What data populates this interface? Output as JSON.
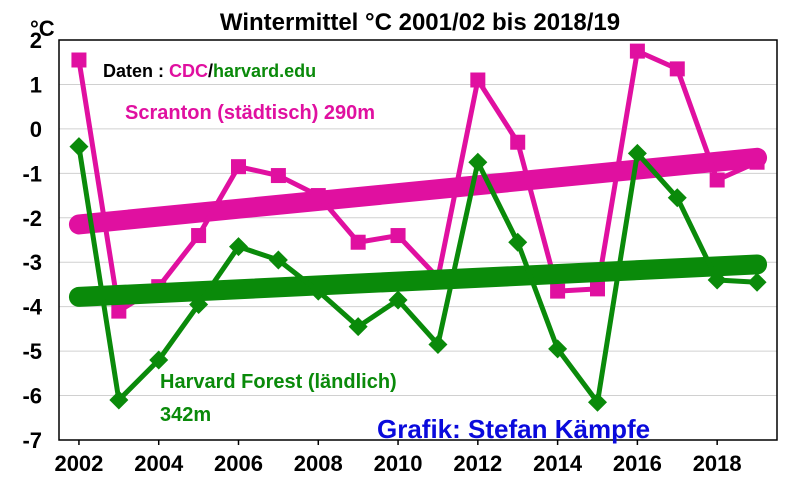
{
  "chart_data": {
    "type": "line",
    "title": "Wintermittel °C 2001/02 bis 2018/19",
    "yunit": "°C",
    "ylim": [
      -7,
      2
    ],
    "yticks": [
      "2",
      "1",
      "0",
      "-1",
      "-2",
      "-3",
      "-4",
      "-5",
      "-6",
      "-7"
    ],
    "xlim": [
      2001.5,
      2019.5
    ],
    "xticks": [
      "2002",
      "2004",
      "2006",
      "2008",
      "2010",
      "2012",
      "2014",
      "2016",
      "2018"
    ],
    "grid": true,
    "x": [
      2002,
      2003,
      2004,
      2005,
      2006,
      2007,
      2008,
      2009,
      2010,
      2011,
      2012,
      2013,
      2014,
      2015,
      2016,
      2017,
      2018,
      2019
    ],
    "series": [
      {
        "name": "Scranton (städtisch) 290m",
        "color": "#e010a0",
        "marker": "square",
        "values": [
          1.55,
          -4.1,
          -3.55,
          -2.4,
          -0.85,
          -1.05,
          -1.5,
          -2.55,
          -2.4,
          -3.35,
          1.1,
          -0.3,
          -3.65,
          -3.6,
          1.75,
          1.35,
          -1.15,
          -0.75
        ],
        "trend": [
          -2.15,
          -0.65
        ]
      },
      {
        "name": "Harvard Forest (ländlich) 342m",
        "color": "#0a8a0a",
        "marker": "diamond",
        "values": [
          -0.4,
          -6.1,
          -5.2,
          -3.95,
          -2.65,
          -2.95,
          -3.65,
          -4.45,
          -3.85,
          -4.85,
          -0.75,
          -2.55,
          -4.95,
          -6.15,
          -0.55,
          -1.55,
          -3.4,
          -3.45
        ],
        "trend": [
          -3.78,
          -3.05
        ]
      }
    ],
    "source": {
      "prefix": "Daten : ",
      "cdc": "CDC",
      "slash": "/",
      "harvard": "harvard.edu"
    },
    "annotations": {
      "scranton": "Scranton (städtisch) 290m",
      "harvard_line1": "Harvard Forest (ländlich)",
      "harvard_line2": "342m",
      "credit": "Grafik: Stefan Kämpfe"
    },
    "colors": {
      "background": "#ffffff",
      "grid": "#d0d0d0",
      "credit": "#0a0adc"
    }
  }
}
